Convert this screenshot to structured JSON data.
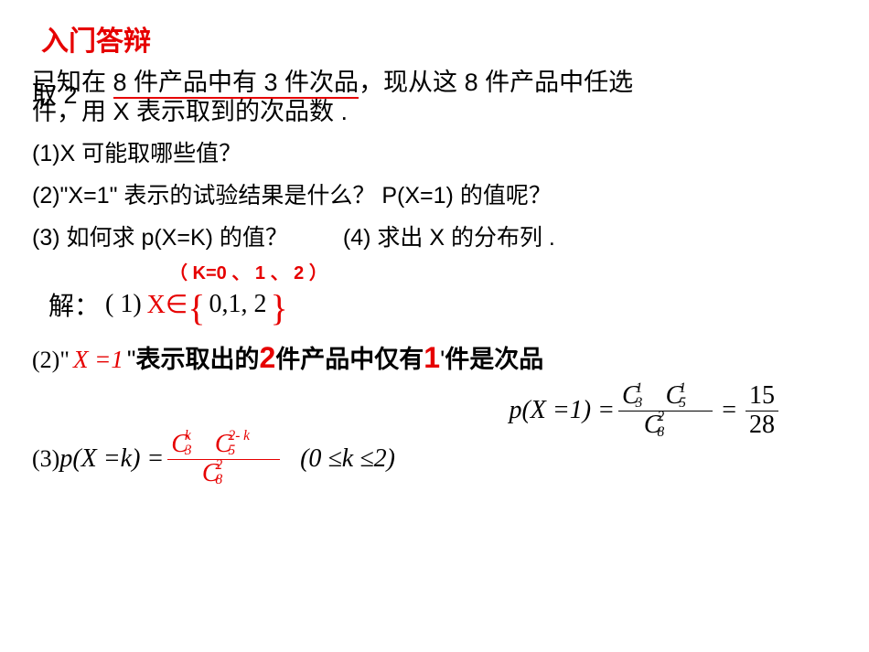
{
  "title": "入门答辩",
  "problem": {
    "line1_pre": "已知在 ",
    "line1_underlined": "8 件产品中有 3 件次品",
    "line1_post": "，现从这 8 件产品中任选",
    "line2_left": "取 2",
    "line2_right": "件，用 X 表示取到的次品数 ."
  },
  "questions": {
    "q1": "(1)X 可能取哪些值？",
    "q2": "(2)\"X=1\" 表示的试验结果是什么？ P(X=1) 的值呢？",
    "q3": "(3) 如何求 p(X=K) 的值？",
    "q4": "(4) 求出 X 的分布列 .",
    "knote": "（ K=0 、 1 、 2 ）"
  },
  "solution1": {
    "jie": "解：",
    "paren": "( 1)",
    "xin": " X∈",
    "set": "0,1, 2"
  },
  "solution2": {
    "lbl": "(2)\"",
    "xeq": "X  =1",
    "quote_close": "\" ",
    "t1": "表示取出的",
    "two": "2",
    "t2": "件产品中仅有 ",
    "one": "1",
    "apos": "'",
    "t3": " 件是次品"
  },
  "formula_p1": {
    "lhs": "p(X  =1) =",
    "c35_top1": "1",
    "c35_bot1": "3",
    "c35_top2": "1",
    "c35_bot2": "5",
    "c8_top": "2",
    "c8_bot": "8",
    "eq": " =",
    "res_num": "15",
    "res_den": "28"
  },
  "solution3": {
    "lbl": "(3)",
    "lhs": " p(X  =k) =",
    "c3_top": "k",
    "c3_bot": "3",
    "c5_top": "2- k",
    "c5_bot": "5",
    "c8_top": "2",
    "c8_bot": "8",
    "range": "(0 ≤k ≤2)"
  },
  "colors": {
    "red": "#e60000",
    "black": "#000000",
    "bg": "#ffffff"
  }
}
